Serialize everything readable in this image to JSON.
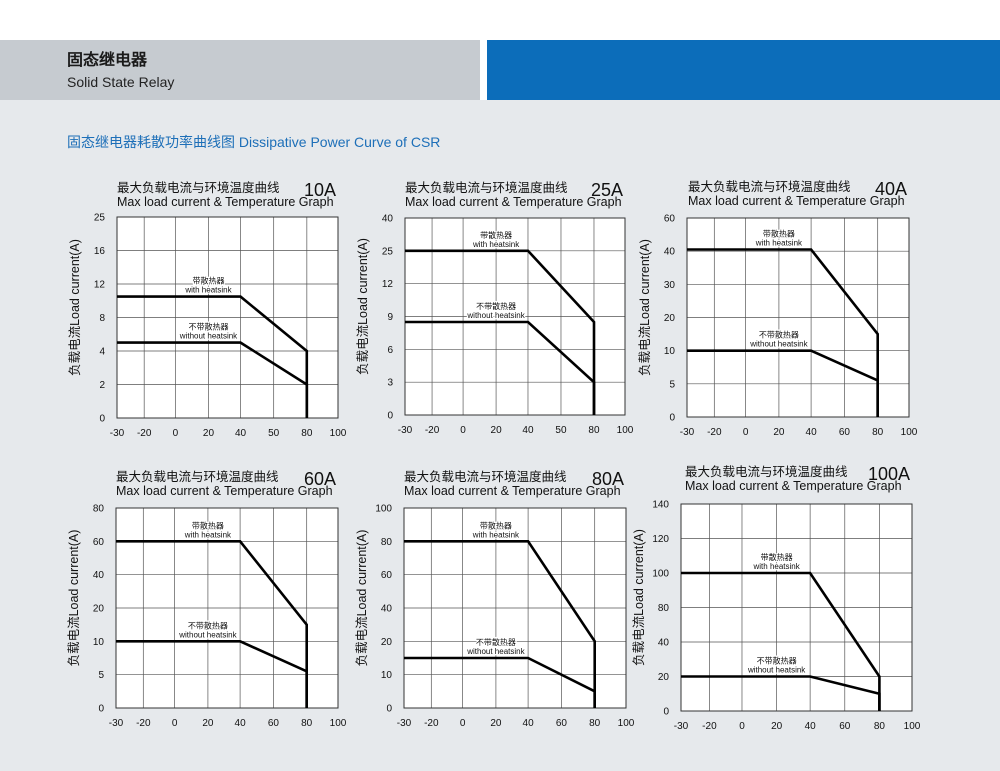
{
  "header": {
    "title_cn": "固态继电器",
    "title_en": "Solid State Relay"
  },
  "section_title": "固态继电器耗散功率曲线图 Dissipative Power Curve of CSR",
  "colors": {
    "page_background": "#e6e9ec",
    "header_gray": "#c6cbd0",
    "header_blue": "#0c6dba",
    "section_title": "#1d6fb8",
    "curve": "#000000"
  },
  "chart_data": [
    {
      "type": "line",
      "title": "最大负载电流与环境温度曲线",
      "rating": "10A",
      "subtitle": "Max load current & Temperature Graph",
      "ylabel": "负载电流Load current(A)",
      "x_ticks": [
        -30,
        -20,
        0,
        20,
        40,
        50,
        80,
        100
      ],
      "y_ticks": [
        0,
        2,
        4,
        8,
        12,
        16,
        25
      ],
      "xlim": [
        -30,
        100
      ],
      "ylim": [
        0,
        25
      ],
      "grid": true,
      "series": [
        {
          "name": "with heatsink",
          "name_cn": "带散热器",
          "points": [
            [
              -30,
              10.5
            ],
            [
              40,
              10.5
            ],
            [
              80,
              4
            ],
            [
              80,
              0
            ]
          ]
        },
        {
          "name": "without heatsink",
          "name_cn": "不带散热器",
          "points": [
            [
              -30,
              5
            ],
            [
              40,
              5
            ],
            [
              80,
              2
            ],
            [
              80,
              0
            ]
          ]
        }
      ]
    },
    {
      "type": "line",
      "title": "最大负载电流与环境温度曲线",
      "rating": "25A",
      "subtitle": "Max load current & Temperature Graph",
      "ylabel": "负载电流Load current(A)",
      "x_ticks": [
        -30,
        -20,
        0,
        20,
        40,
        50,
        80,
        100
      ],
      "y_ticks": [
        0,
        3,
        6,
        9,
        12,
        25,
        40
      ],
      "xlim": [
        -30,
        100
      ],
      "ylim": [
        0,
        40
      ],
      "grid": true,
      "series": [
        {
          "name": "with heatsink",
          "name_cn": "带散热器",
          "points": [
            [
              -30,
              25
            ],
            [
              40,
              25
            ],
            [
              80,
              8.5
            ],
            [
              80,
              0
            ]
          ]
        },
        {
          "name": "without heatsink",
          "name_cn": "不带散热器",
          "points": [
            [
              -30,
              8.5
            ],
            [
              40,
              8.5
            ],
            [
              80,
              3
            ],
            [
              80,
              0
            ]
          ]
        }
      ]
    },
    {
      "type": "line",
      "title": "最大负载电流与环境温度曲线",
      "rating": "40A",
      "subtitle": "Max load current & Temperature Graph",
      "ylabel": "负载电流Load current(A)",
      "x_ticks": [
        -30,
        -20,
        0,
        20,
        40,
        60,
        80,
        100
      ],
      "y_ticks": [
        0,
        5,
        10,
        20,
        30,
        40,
        60
      ],
      "xlim": [
        -30,
        100
      ],
      "ylim": [
        0,
        60
      ],
      "grid": true,
      "series": [
        {
          "name": "with heatsink",
          "name_cn": "带散热器",
          "points": [
            [
              -30,
              41
            ],
            [
              40,
              41
            ],
            [
              80,
              15
            ],
            [
              80,
              0
            ]
          ]
        },
        {
          "name": "without heatsink",
          "name_cn": "不带散热器",
          "points": [
            [
              -30,
              10
            ],
            [
              40,
              10
            ],
            [
              80,
              5.5
            ],
            [
              80,
              0
            ]
          ]
        }
      ]
    },
    {
      "type": "line",
      "title": "最大负载电流与环境温度曲线",
      "rating": "60A",
      "subtitle": "Max load current & Temperature Graph",
      "ylabel": "负载电流Load current(A)",
      "x_ticks": [
        -30,
        -20,
        0,
        20,
        40,
        60,
        80,
        100
      ],
      "y_ticks": [
        0,
        5,
        10,
        20,
        40,
        60,
        80
      ],
      "xlim": [
        -30,
        100
      ],
      "ylim": [
        0,
        80
      ],
      "grid": true,
      "series": [
        {
          "name": "with heatsink",
          "name_cn": "带散热器",
          "points": [
            [
              -30,
              60
            ],
            [
              40,
              60
            ],
            [
              80,
              15
            ],
            [
              80,
              0
            ]
          ]
        },
        {
          "name": "without heatsink",
          "name_cn": "不带散热器",
          "points": [
            [
              -30,
              10
            ],
            [
              40,
              10
            ],
            [
              80,
              5.5
            ],
            [
              80,
              0
            ]
          ]
        }
      ]
    },
    {
      "type": "line",
      "title": "最大负载电流与环境温度曲线",
      "rating": "80A",
      "subtitle": "Max load current & Temperature Graph",
      "ylabel": "负载电流Load current(A)",
      "x_ticks": [
        -30,
        -20,
        0,
        20,
        40,
        60,
        80,
        100
      ],
      "y_ticks": [
        0,
        10,
        20,
        40,
        60,
        80,
        100
      ],
      "xlim": [
        -30,
        100
      ],
      "ylim": [
        0,
        100
      ],
      "grid": true,
      "series": [
        {
          "name": "with heatsink",
          "name_cn": "带散热器",
          "points": [
            [
              -30,
              80
            ],
            [
              40,
              80
            ],
            [
              80,
              20
            ],
            [
              80,
              0
            ]
          ]
        },
        {
          "name": "without heatsink",
          "name_cn": "不带散热器",
          "points": [
            [
              -30,
              15
            ],
            [
              40,
              15
            ],
            [
              80,
              5
            ],
            [
              80,
              0
            ]
          ]
        }
      ]
    },
    {
      "type": "line",
      "title": "最大负载电流与环境温度曲线",
      "rating": "100A",
      "subtitle": "Max load current & Temperature Graph",
      "ylabel": "负载电流Load current(A)",
      "x_ticks": [
        -30,
        -20,
        0,
        20,
        40,
        60,
        80,
        100
      ],
      "y_ticks": [
        0,
        20,
        40,
        80,
        100,
        120,
        140
      ],
      "xlim": [
        -30,
        100
      ],
      "ylim": [
        0,
        140
      ],
      "grid": true,
      "series": [
        {
          "name": "with heatsink",
          "name_cn": "带散热器",
          "points": [
            [
              -30,
              100
            ],
            [
              40,
              100
            ],
            [
              80,
              20
            ],
            [
              80,
              0
            ]
          ]
        },
        {
          "name": "without heatsink",
          "name_cn": "不带散热器",
          "points": [
            [
              -30,
              20
            ],
            [
              40,
              20
            ],
            [
              80,
              10
            ],
            [
              80,
              0
            ]
          ]
        }
      ]
    }
  ]
}
